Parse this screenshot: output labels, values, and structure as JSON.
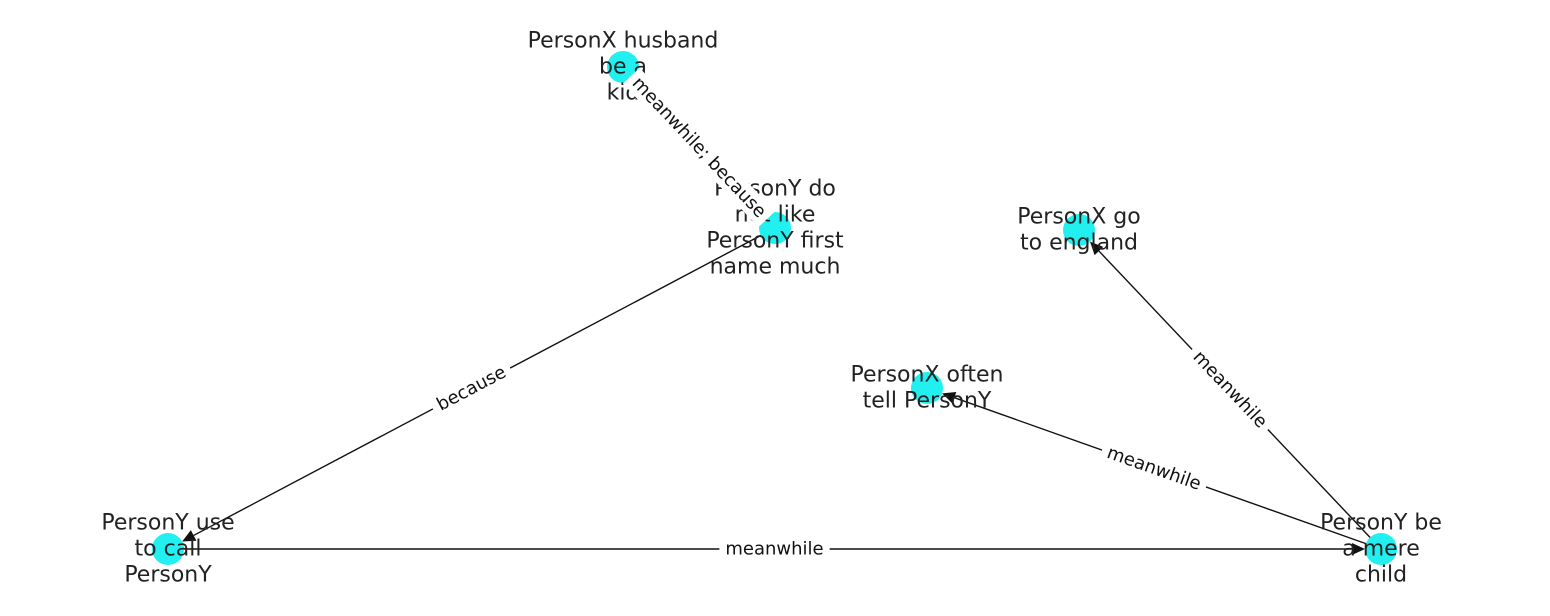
{
  "graph": {
    "node_color": "#22f0f0",
    "edge_color": "#111111",
    "nodes": [
      {
        "id": "n1",
        "label_lines": [
          "PersonX husband",
          "be a",
          "kid"
        ]
      },
      {
        "id": "n2",
        "label_lines": [
          "PersonY do",
          "not like",
          "PersonY first",
          "name much"
        ]
      },
      {
        "id": "n3",
        "label_lines": [
          "PersonX go",
          "to england"
        ]
      },
      {
        "id": "n4",
        "label_lines": [
          "PersonX often",
          "tell PersonY"
        ]
      },
      {
        "id": "n5",
        "label_lines": [
          "PersonY use",
          "to call",
          "PersonY"
        ]
      },
      {
        "id": "n6",
        "label_lines": [
          "PersonY be",
          "a mere",
          "child"
        ]
      }
    ],
    "edges": [
      {
        "id": "e1",
        "source": "n1",
        "target": "n2",
        "label": "meanwhile; because"
      },
      {
        "id": "e2",
        "source": "n2",
        "target": "n5",
        "label": "because"
      },
      {
        "id": "e3",
        "source": "n5",
        "target": "n6",
        "label": "meanwhile"
      },
      {
        "id": "e4",
        "source": "n6",
        "target": "n4",
        "label": "meanwhile"
      },
      {
        "id": "e5",
        "source": "n6",
        "target": "n3",
        "label": "meanwhile"
      }
    ]
  }
}
